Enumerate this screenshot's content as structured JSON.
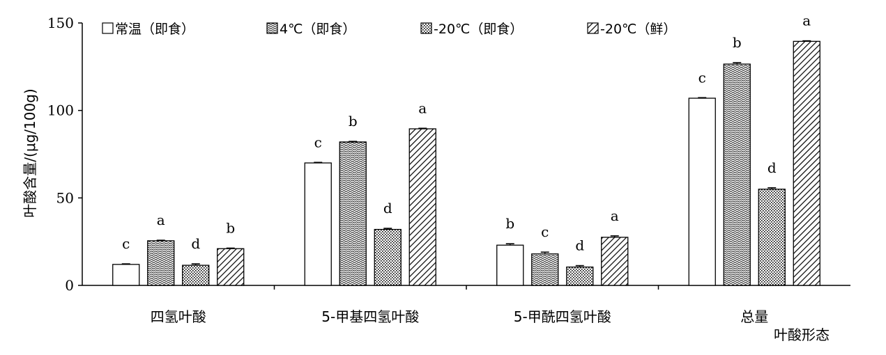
{
  "chart_data": {
    "type": "bar",
    "ylabel": "叶酸含量/(μg/100g)",
    "xlabel": "叶酸形态",
    "ylim": [
      0,
      150
    ],
    "yticks": [
      0,
      50,
      100,
      150
    ],
    "legend_position": "top",
    "categories": [
      "四氢叶酸",
      "5-甲基四氢叶酸",
      "5-甲酰四氢叶酸",
      "总量"
    ],
    "series": [
      {
        "name": "常温（即食）",
        "pattern": "none",
        "values": [
          12,
          70,
          23,
          107
        ],
        "errors": [
          0.3,
          0.3,
          0.8,
          0.3
        ],
        "labels": [
          "c",
          "c",
          "b",
          "c"
        ]
      },
      {
        "name": "4℃（即食）",
        "pattern": "waves",
        "values": [
          25.5,
          82,
          18,
          126.5
        ],
        "errors": [
          0.3,
          0.3,
          1.0,
          0.8
        ],
        "labels": [
          "a",
          "b",
          "c",
          "b"
        ]
      },
      {
        "name": "-20℃（即食）",
        "pattern": "dots",
        "values": [
          11.5,
          32,
          10.5,
          55
        ],
        "errors": [
          0.8,
          0.6,
          0.8,
          0.8
        ],
        "labels": [
          "d",
          "d",
          "d",
          "d"
        ]
      },
      {
        "name": "-20℃（鲜）",
        "pattern": "hatch",
        "values": [
          21,
          89.5,
          27.5,
          139.5
        ],
        "errors": [
          0.3,
          0.3,
          0.8,
          0.3
        ],
        "labels": [
          "b",
          "a",
          "a",
          "a"
        ]
      }
    ]
  }
}
